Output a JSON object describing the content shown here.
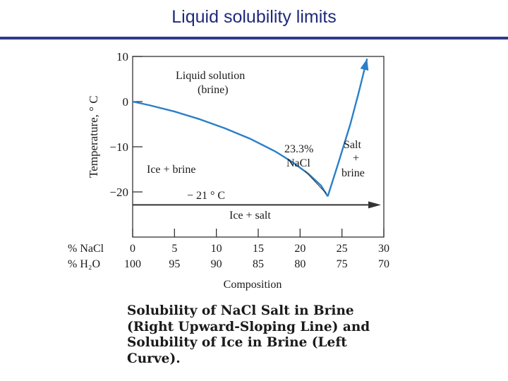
{
  "slide": {
    "title": "Liquid solubility limits",
    "caption": "Solubility of NaCl Salt in Brine (Right Upward-Sloping Line) and Solubility of Ice in Brine (Left Curve)."
  },
  "colors": {
    "title": "#1f2a7a",
    "curve": "#2a7fc9",
    "line": "#333333"
  },
  "chart_data": {
    "type": "line",
    "title": "",
    "xlabel": "Composition",
    "ylabel": "Temperature, ° C",
    "xlim": [
      0,
      30
    ],
    "ylim": [
      -30,
      10
    ],
    "yticks": [
      10,
      0,
      -10,
      -20
    ],
    "ytick_labels": [
      "10",
      "0",
      "−10",
      "−20"
    ],
    "xticks": [
      0,
      5,
      10,
      15,
      20,
      25,
      30
    ],
    "x_rows": [
      {
        "label": "% NaCl",
        "values": [
          "0",
          "5",
          "10",
          "15",
          "20",
          "25",
          "30"
        ]
      },
      {
        "label": "% H₂O",
        "values": [
          "100",
          "95",
          "90",
          "85",
          "80",
          "75",
          "70"
        ]
      }
    ],
    "series": [
      {
        "x": [
          0,
          2,
          5,
          8,
          11,
          14,
          17,
          19,
          21,
          22.5,
          23.3
        ],
        "y": [
          0,
          -0.8,
          -2.2,
          -3.9,
          -5.9,
          -8.2,
          -11,
          -13.3,
          -16,
          -18.6,
          -21
        ]
      },
      {
        "x": [
          23.3,
          24.5,
          26,
          27,
          28
        ],
        "y": [
          -21,
          -14,
          -5,
          2,
          9.5
        ]
      }
    ],
    "eutectic": {
      "x": 23.3,
      "y": -21
    },
    "isotherm_y": -21,
    "region_labels": [
      "Liquid solution",
      "(brine)",
      "Ice + brine",
      "Salt",
      "+",
      "brine",
      "Ice + salt"
    ],
    "annotations": [
      "23.3%",
      "NaCl",
      "− 21 ° C"
    ]
  }
}
